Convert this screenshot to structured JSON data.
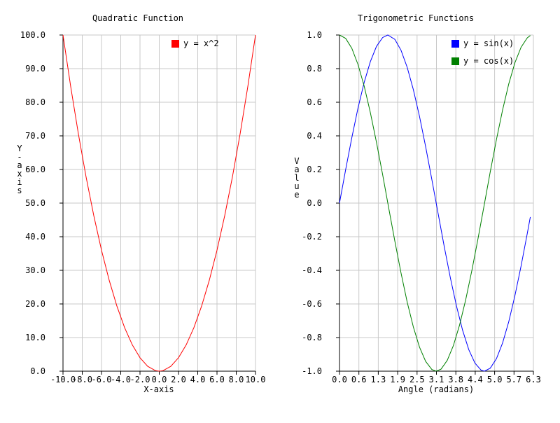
{
  "chart_data": [
    {
      "type": "line",
      "title": "Quadratic Function",
      "xlabel": "X-axis",
      "ylabel": "Y-axis",
      "xlim": [
        -10,
        10
      ],
      "ylim": [
        0,
        100
      ],
      "grid": true,
      "legend_position": "top-right",
      "x_ticks": [
        "-10.0",
        "-8.0",
        "-6.0",
        "-4.0",
        "-2.0",
        "0.0",
        "2.0",
        "4.0",
        "6.0",
        "8.0",
        "10.0"
      ],
      "y_ticks": [
        "0.0",
        "10.0",
        "20.0",
        "30.0",
        "40.0",
        "50.0",
        "60.0",
        "70.0",
        "80.0",
        "90.0",
        "100.0"
      ],
      "series": [
        {
          "name": "y = x^2",
          "color": "#ff0000",
          "x": [
            -10,
            -9.2,
            -8.4,
            -7.6,
            -6.8,
            -6,
            -5.2,
            -4.4,
            -3.6,
            -2.8,
            -2,
            -1.2,
            -0.4,
            0,
            0.4,
            1.2,
            2,
            2.8,
            3.6,
            4.4,
            5.2,
            6,
            6.8,
            7.6,
            8.4,
            9.2,
            10
          ],
          "y": [
            100,
            84.64,
            70.56,
            57.76,
            46.24,
            36,
            27.04,
            19.36,
            12.96,
            7.84,
            4,
            1.44,
            0.16,
            0,
            0.16,
            1.44,
            4,
            7.84,
            12.96,
            19.36,
            27.04,
            36,
            46.24,
            57.76,
            70.56,
            84.64,
            100
          ]
        }
      ]
    },
    {
      "type": "line",
      "title": "Trigonometric Functions",
      "xlabel": "Angle (radians)",
      "ylabel": "Value",
      "xlim": [
        0,
        6.3
      ],
      "ylim": [
        -1,
        1
      ],
      "grid": true,
      "legend_position": "top-right",
      "x_ticks": [
        "0.0",
        "0.6",
        "1.3",
        "1.9",
        "2.5",
        "3.1",
        "3.8",
        "4.4",
        "5.0",
        "5.7",
        "6.3"
      ],
      "y_ticks": [
        "-1.0",
        "-0.8",
        "-0.6",
        "-0.4",
        "-0.2",
        "0.0",
        "0.2",
        "0.4",
        "0.6",
        "0.8",
        "1.0"
      ],
      "series": [
        {
          "name": "y = sin(x)",
          "color": "#0000ff",
          "x": [
            0,
            0.2,
            0.4,
            0.6,
            0.8,
            1.0,
            1.2,
            1.4,
            1.57,
            1.8,
            2.0,
            2.2,
            2.4,
            2.6,
            2.8,
            3.0,
            3.2,
            3.4,
            3.6,
            3.8,
            4.0,
            4.2,
            4.4,
            4.6,
            4.71,
            4.9,
            5.1,
            5.3,
            5.5,
            5.7,
            5.9,
            6.1,
            6.2
          ],
          "y": [
            0,
            0.199,
            0.389,
            0.565,
            0.717,
            0.841,
            0.932,
            0.985,
            1.0,
            0.974,
            0.909,
            0.808,
            0.675,
            0.516,
            0.335,
            0.141,
            -0.058,
            -0.256,
            -0.443,
            -0.612,
            -0.757,
            -0.872,
            -0.952,
            -0.994,
            -1.0,
            -0.982,
            -0.926,
            -0.832,
            -0.706,
            -0.551,
            -0.374,
            -0.182,
            -0.083
          ]
        },
        {
          "name": "y = cos(x)",
          "color": "#008000",
          "x": [
            0,
            0.2,
            0.4,
            0.6,
            0.8,
            1.0,
            1.2,
            1.4,
            1.6,
            1.8,
            2.0,
            2.2,
            2.4,
            2.6,
            2.8,
            3.0,
            3.14,
            3.3,
            3.5,
            3.7,
            3.9,
            4.1,
            4.3,
            4.5,
            4.7,
            4.9,
            5.1,
            5.3,
            5.5,
            5.7,
            5.9,
            6.1,
            6.2
          ],
          "y": [
            1,
            0.98,
            0.921,
            0.825,
            0.697,
            0.54,
            0.362,
            0.17,
            -0.029,
            -0.227,
            -0.416,
            -0.589,
            -0.737,
            -0.857,
            -0.942,
            -0.99,
            -1.0,
            -0.988,
            -0.936,
            -0.848,
            -0.726,
            -0.575,
            -0.401,
            -0.211,
            -0.012,
            0.187,
            0.378,
            0.554,
            0.709,
            0.835,
            0.927,
            0.983,
            0.997
          ]
        }
      ]
    }
  ]
}
